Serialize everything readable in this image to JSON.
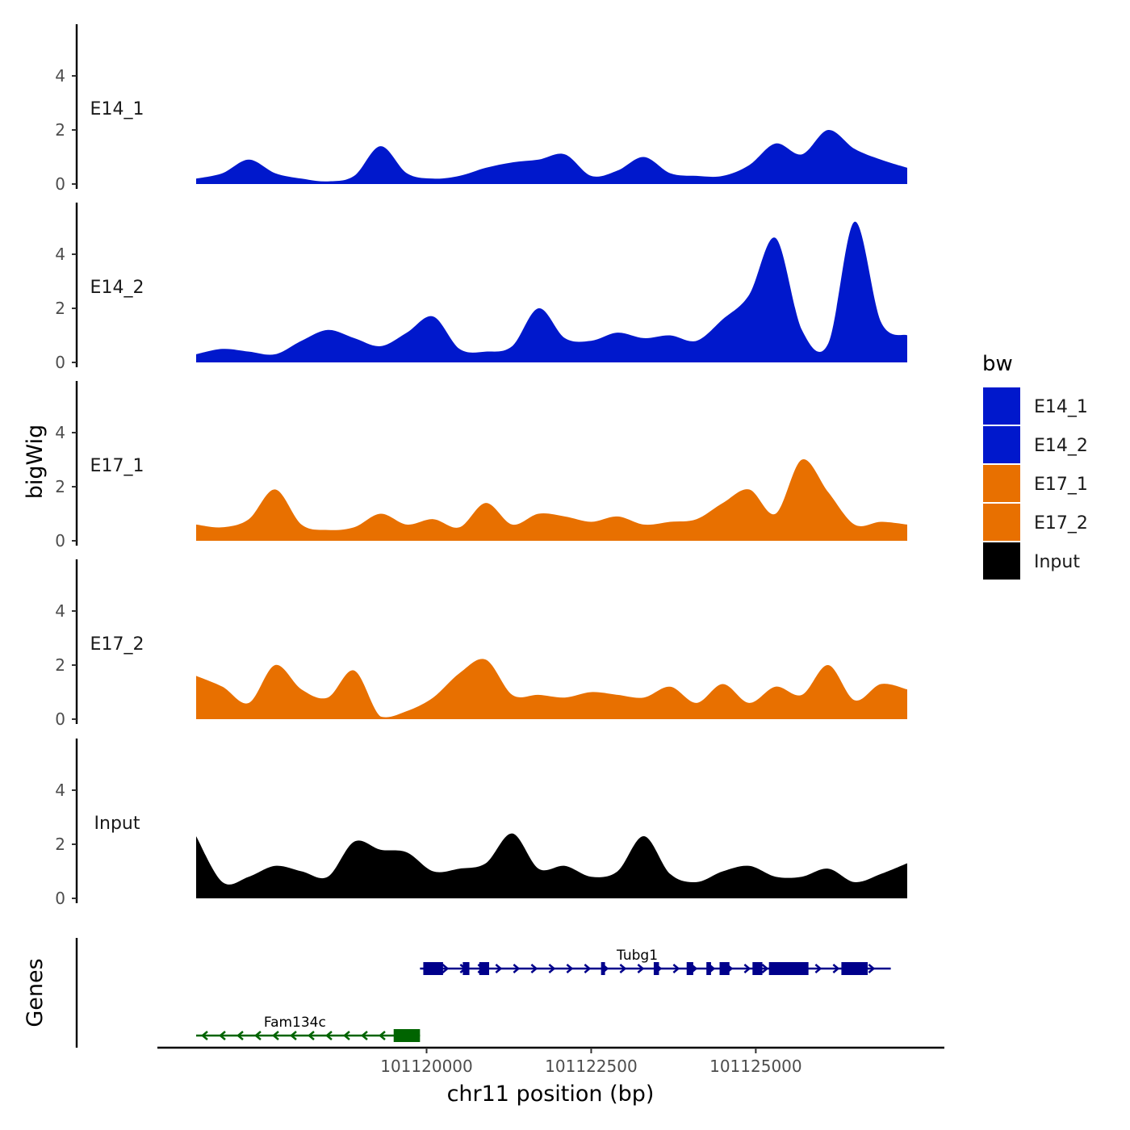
{
  "chart_data": {
    "type": "area",
    "ylabel": "bigWig",
    "xlabel": "chr11 position (bp)",
    "region": {
      "chrom": "chr11",
      "start": 101116500,
      "end": 101127500
    },
    "ylim": [
      0,
      5.8
    ],
    "yticks": [
      0,
      2,
      4
    ],
    "xticks": [
      101120000,
      101122500,
      101125000
    ],
    "xtick_labels": [
      "101120000",
      "101122500",
      "101125000"
    ],
    "genes_label": "Genes",
    "legend": {
      "title": "bw",
      "entries": [
        {
          "name": "E14_1",
          "color": "#0018CC"
        },
        {
          "name": "E14_2",
          "color": "#0018CC"
        },
        {
          "name": "E17_1",
          "color": "#E87000"
        },
        {
          "name": "E17_2",
          "color": "#E87000"
        },
        {
          "name": "Input",
          "color": "#000000"
        }
      ]
    },
    "tracks": [
      {
        "name": "E14_1",
        "color": "#0018CC",
        "x": [
          101116500,
          101116900,
          101117300,
          101117700,
          101118100,
          101118500,
          101118900,
          101119300,
          101119700,
          101120100,
          101120500,
          101120900,
          101121300,
          101121700,
          101122100,
          101122500,
          101122900,
          101123300,
          101123700,
          101124100,
          101124500,
          101124900,
          101125300,
          101125700,
          101126100,
          101126500,
          101126900,
          101127300
        ],
        "y": [
          0.2,
          0.4,
          0.9,
          0.4,
          0.2,
          0.1,
          0.3,
          1.4,
          0.4,
          0.2,
          0.3,
          0.6,
          0.8,
          0.9,
          1.1,
          0.3,
          0.5,
          1.0,
          0.4,
          0.3,
          0.3,
          0.7,
          1.5,
          1.1,
          2.0,
          1.3,
          0.9,
          0.6
        ]
      },
      {
        "name": "E14_2",
        "color": "#0018CC",
        "x": [
          101116500,
          101116900,
          101117300,
          101117700,
          101118100,
          101118500,
          101118900,
          101119300,
          101119700,
          101120100,
          101120500,
          101120900,
          101121300,
          101121700,
          101122100,
          101122500,
          101122900,
          101123300,
          101123700,
          101124100,
          101124500,
          101124900,
          101125300,
          101125700,
          101126100,
          101126500,
          101126900,
          101127300
        ],
        "y": [
          0.3,
          0.5,
          0.4,
          0.3,
          0.8,
          1.2,
          0.9,
          0.6,
          1.1,
          1.7,
          0.5,
          0.4,
          0.6,
          2.0,
          0.9,
          0.8,
          1.1,
          0.9,
          1.0,
          0.8,
          1.6,
          2.5,
          4.6,
          1.2,
          0.7,
          5.2,
          1.5,
          1.0
        ]
      },
      {
        "name": "E17_1",
        "color": "#E87000",
        "x": [
          101116500,
          101116900,
          101117300,
          101117700,
          101118100,
          101118500,
          101118900,
          101119300,
          101119700,
          101120100,
          101120500,
          101120900,
          101121300,
          101121700,
          101122100,
          101122500,
          101122900,
          101123300,
          101123700,
          101124100,
          101124500,
          101124900,
          101125300,
          101125700,
          101126100,
          101126500,
          101126900,
          101127300
        ],
        "y": [
          0.6,
          0.5,
          0.8,
          1.9,
          0.6,
          0.4,
          0.5,
          1.0,
          0.6,
          0.8,
          0.5,
          1.4,
          0.6,
          1.0,
          0.9,
          0.7,
          0.9,
          0.6,
          0.7,
          0.8,
          1.4,
          1.9,
          1.0,
          3.0,
          1.8,
          0.6,
          0.7,
          0.6
        ]
      },
      {
        "name": "E17_2",
        "color": "#E87000",
        "x": [
          101116500,
          101116900,
          101117300,
          101117700,
          101118100,
          101118500,
          101118900,
          101119300,
          101119700,
          101120100,
          101120500,
          101120900,
          101121300,
          101121700,
          101122100,
          101122500,
          101122900,
          101123300,
          101123700,
          101124100,
          101124500,
          101124900,
          101125300,
          101125700,
          101126100,
          101126500,
          101126900,
          101127300
        ],
        "y": [
          1.6,
          1.2,
          0.6,
          2.0,
          1.1,
          0.8,
          1.8,
          0.1,
          0.3,
          0.8,
          1.7,
          2.2,
          0.9,
          0.9,
          0.8,
          1.0,
          0.9,
          0.8,
          1.2,
          0.6,
          1.3,
          0.6,
          1.2,
          0.9,
          2.0,
          0.7,
          1.3,
          1.1
        ]
      },
      {
        "name": "Input",
        "color": "#000000",
        "x": [
          101116500,
          101116900,
          101117300,
          101117700,
          101118100,
          101118500,
          101118900,
          101119300,
          101119700,
          101120100,
          101120500,
          101120900,
          101121300,
          101121700,
          101122100,
          101122500,
          101122900,
          101123300,
          101123700,
          101124100,
          101124500,
          101124900,
          101125300,
          101125700,
          101126100,
          101126500,
          101126900,
          101127300
        ],
        "y": [
          2.3,
          0.6,
          0.8,
          1.2,
          1.0,
          0.8,
          2.1,
          1.8,
          1.7,
          1.0,
          1.1,
          1.3,
          2.4,
          1.1,
          1.2,
          0.8,
          1.0,
          2.3,
          0.9,
          0.6,
          1.0,
          1.2,
          0.8,
          0.8,
          1.1,
          0.6,
          0.9,
          1.3
        ]
      }
    ],
    "genes": [
      {
        "name": "Tubg1",
        "strand": "+",
        "color": "#00008B",
        "row": 0,
        "start": 101119900,
        "end": 101127050,
        "exons": [
          [
            101119950,
            101120250
          ],
          [
            101120550,
            101120650
          ],
          [
            101120800,
            101120950
          ],
          [
            101122650,
            101122710
          ],
          [
            101123450,
            101123530
          ],
          [
            101123950,
            101124050
          ],
          [
            101124250,
            101124320
          ],
          [
            101124450,
            101124600
          ],
          [
            101124950,
            101125100
          ],
          [
            101125200,
            101125800
          ],
          [
            101126300,
            101126700
          ]
        ]
      },
      {
        "name": "Fam134c",
        "strand": "-",
        "color": "#006400",
        "row": 1,
        "start": 101116500,
        "end": 101119900,
        "exons": [
          [
            101119500,
            101119900
          ]
        ]
      }
    ]
  }
}
